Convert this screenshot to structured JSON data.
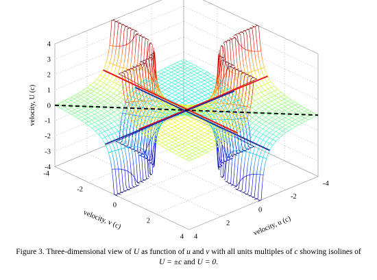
{
  "chart_data": {
    "type": "surface3d",
    "title": "",
    "axes": {
      "u": {
        "label": "velocity, u (c)",
        "ticks": [
          "-4",
          "-2",
          "0",
          "2",
          "4"
        ],
        "range": [
          -4,
          4
        ]
      },
      "v": {
        "label": "velocity, v (c)",
        "ticks": [
          "-4",
          "-2",
          "0",
          "2",
          "4"
        ],
        "range": [
          -4,
          4
        ]
      },
      "U": {
        "label": "velocity, U (c)",
        "ticks": [
          "-4",
          "-3",
          "-2",
          "-1",
          "0",
          "1",
          "2",
          "3",
          "4"
        ],
        "range": [
          -4,
          4
        ]
      }
    },
    "grid": true,
    "colormap": "jet",
    "surface": "U = (u+v)/(1+uv), clipped to [-4, 4]",
    "isolines": [
      {
        "name": "U = +c",
        "color": "#e8141c",
        "style": "solid",
        "segments": [
          [
            [
              -4,
              1,
              1
            ],
            [
              4,
              1,
              1
            ]
          ],
          [
            [
              1,
              -4,
              1
            ],
            [
              1,
              4,
              1
            ]
          ]
        ]
      },
      {
        "name": "U = -c",
        "color": "#2b2f9e",
        "style": "solid",
        "segments": [
          [
            [
              -4,
              -1,
              -1
            ],
            [
              4,
              -1,
              -1
            ]
          ],
          [
            [
              -1,
              -4,
              -1
            ],
            [
              -1,
              4,
              -1
            ]
          ]
        ]
      },
      {
        "name": "U = 0",
        "color": "#000000",
        "style": "dashed",
        "segments": [
          [
            [
              -4,
              4,
              0
            ],
            [
              4,
              -4,
              0
            ]
          ]
        ]
      }
    ]
  },
  "caption": {
    "label": "Figure 3.",
    "text_1": " Three-dimensional view of ",
    "var_U": "U",
    "text_2": " as function of ",
    "var_u": "u",
    "text_3": " and ",
    "var_v": "v",
    "text_4": " with all units multiples of ",
    "var_c": "c",
    "text_5": " showing isolines of ",
    "eq_1": "U = ±c",
    "text_6": " and ",
    "eq_2": "U = 0",
    "text_7": "."
  }
}
